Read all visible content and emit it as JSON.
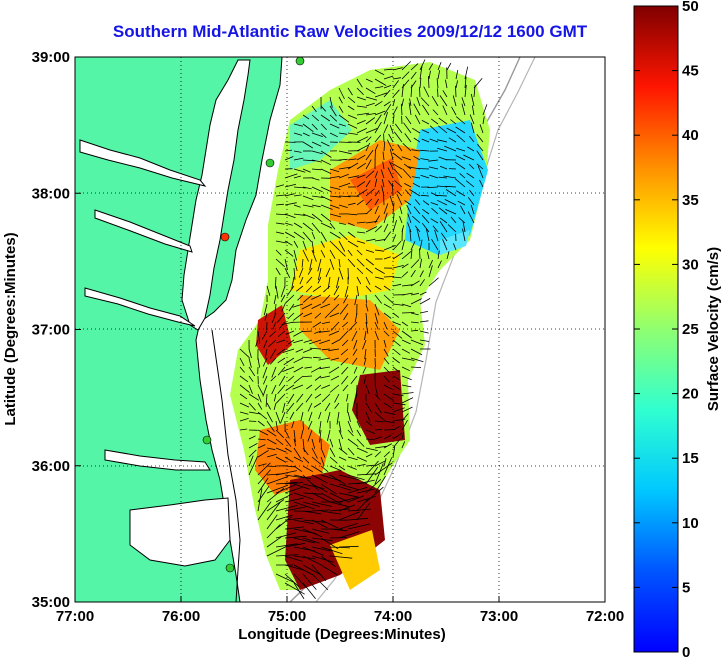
{
  "title": "Southern Mid-Atlantic Raw Velocities 2009/12/12 1600 GMT",
  "x_axis": {
    "label": "Longitude (Degrees:Minutes)",
    "ticks": [
      "77:00",
      "76:00",
      "75:00",
      "74:00",
      "73:00",
      "72:00"
    ]
  },
  "y_axis": {
    "label": "Latitude (Degrees:Minutes)",
    "ticks": [
      "39:00",
      "38:00",
      "37:00",
      "36:00",
      "35:00"
    ]
  },
  "colorbar": {
    "label": "Surface Velocity (cm/s)",
    "ticks": [
      "0",
      "5",
      "10",
      "15",
      "20",
      "25",
      "30",
      "35",
      "40",
      "45",
      "50"
    ],
    "min": 0,
    "max": 50
  },
  "chart_data": {
    "type": "heatmap",
    "title": "Southern Mid-Atlantic Raw Velocities 2009/12/12 1600 GMT",
    "xlabel": "Longitude (Degrees:Minutes)",
    "ylabel": "Latitude (Degrees:Minutes)",
    "xlim": [
      -77,
      -72
    ],
    "ylim": [
      35,
      39
    ],
    "grid": true,
    "colorbar_label": "Surface Velocity (cm/s)",
    "colorbar_range": [
      0,
      50
    ],
    "colorscale": "jet",
    "land_color": "#55f5a8"
  }
}
